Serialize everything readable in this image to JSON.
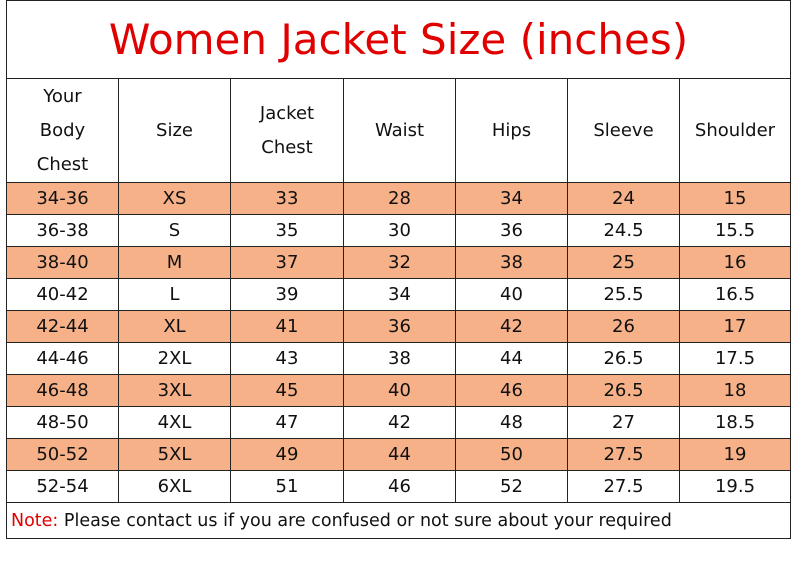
{
  "title": "Women Jacket Size (inches)",
  "table": {
    "header": [
      [
        "Your",
        "Body",
        "Chest"
      ],
      [
        "Size"
      ],
      [
        "Jacket",
        "Chest"
      ],
      [
        "Waist"
      ],
      [
        "Hips"
      ],
      [
        "Sleeve"
      ],
      [
        "Shoulder"
      ]
    ],
    "rows": [
      [
        "34-36",
        "XS",
        "33",
        "28",
        "34",
        "24",
        "15"
      ],
      [
        "36-38",
        "S",
        "35",
        "30",
        "36",
        "24.5",
        "15.5"
      ],
      [
        "38-40",
        "M",
        "37",
        "32",
        "38",
        "25",
        "16"
      ],
      [
        "40-42",
        "L",
        "39",
        "34",
        "40",
        "25.5",
        "16.5"
      ],
      [
        "42-44",
        "XL",
        "41",
        "36",
        "42",
        "26",
        "17"
      ],
      [
        "44-46",
        "2XL",
        "43",
        "38",
        "44",
        "26.5",
        "17.5"
      ],
      [
        "46-48",
        "3XL",
        "45",
        "40",
        "46",
        "26.5",
        "18"
      ],
      [
        "48-50",
        "4XL",
        "47",
        "42",
        "48",
        "27",
        "18.5"
      ],
      [
        "50-52",
        "5XL",
        "49",
        "44",
        "50",
        "27.5",
        "19"
      ],
      [
        "52-54",
        "6XL",
        "51",
        "46",
        "52",
        "27.5",
        "19.5"
      ]
    ]
  },
  "note": {
    "label": "Note:",
    "text": "Please contact us if you are confused or not sure about your required"
  }
}
